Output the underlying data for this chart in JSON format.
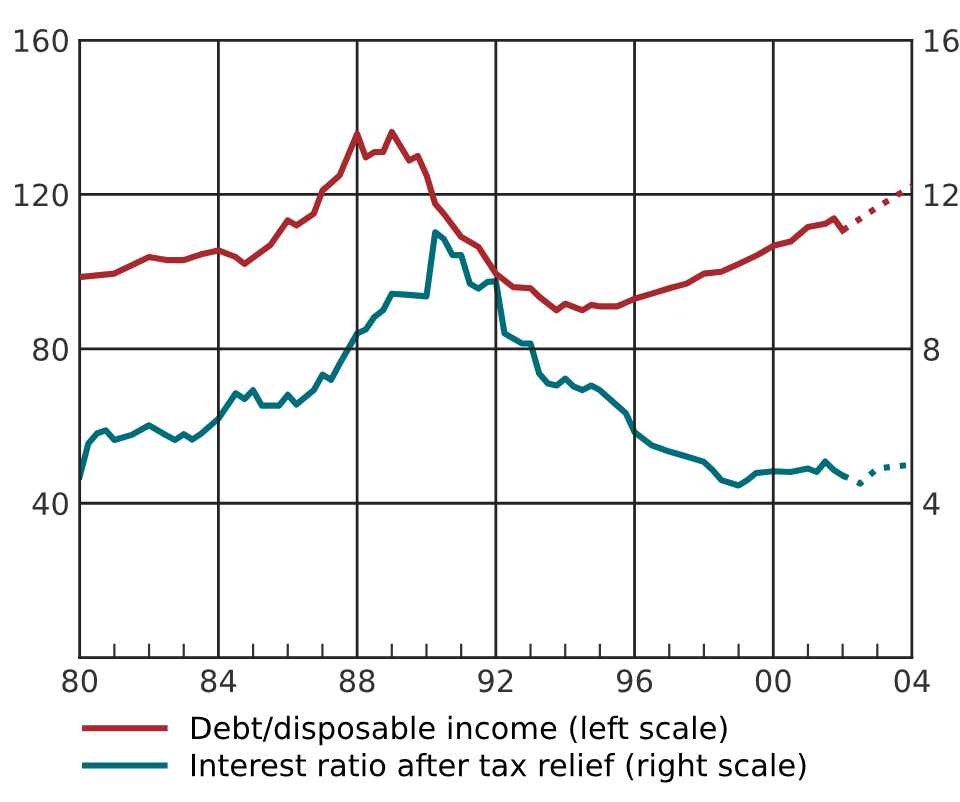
{
  "chart_data": {
    "type": "line",
    "xlim": [
      1980,
      2004
    ],
    "ylim": [
      0,
      160
    ],
    "y2lim": [
      0,
      16
    ],
    "xticks": [
      {
        "value": 1980,
        "label": "80"
      },
      {
        "value": 1981,
        "label": null
      },
      {
        "value": 1982,
        "label": null
      },
      {
        "value": 1983,
        "label": null
      },
      {
        "value": 1984,
        "label": "84"
      },
      {
        "value": 1985,
        "label": null
      },
      {
        "value": 1986,
        "label": null
      },
      {
        "value": 1987,
        "label": null
      },
      {
        "value": 1988,
        "label": "88"
      },
      {
        "value": 1989,
        "label": null
      },
      {
        "value": 1990,
        "label": null
      },
      {
        "value": 1991,
        "label": null
      },
      {
        "value": 1992,
        "label": "92"
      },
      {
        "value": 1993,
        "label": null
      },
      {
        "value": 1994,
        "label": null
      },
      {
        "value": 1995,
        "label": null
      },
      {
        "value": 1996,
        "label": "96"
      },
      {
        "value": 1997,
        "label": null
      },
      {
        "value": 1998,
        "label": null
      },
      {
        "value": 1999,
        "label": null
      },
      {
        "value": 2000,
        "label": "00"
      },
      {
        "value": 2001,
        "label": null
      },
      {
        "value": 2002,
        "label": null
      },
      {
        "value": 2003,
        "label": null
      },
      {
        "value": 2004,
        "label": "04"
      }
    ],
    "yticks": [
      40,
      80,
      120,
      160
    ],
    "y2ticks": [
      4,
      8,
      12,
      16
    ],
    "grid": true,
    "legend": "bottom",
    "marker": "none",
    "series": [
      {
        "name": "Debt/disposable income (left scale)",
        "color": "#a8282e",
        "line_style": "solid",
        "x": [
          1980,
          1981,
          1982,
          1982.5,
          1983,
          1983.5,
          1984,
          1984.5,
          1984.75,
          1985.5,
          1986,
          1986.25,
          1986.75,
          1987,
          1987.5,
          1988,
          1988.25,
          1988.5,
          1988.75,
          1989,
          1989.5,
          1989.75,
          1990,
          1990.25,
          1990.5,
          1991,
          1991.5,
          1992,
          1992.5,
          1993,
          1993.25,
          1993.75,
          1994,
          1994.5,
          1994.75,
          1995,
          1995.5,
          1996,
          1996.5,
          1997,
          1997.5,
          1998,
          1998.5,
          1999,
          1999.5,
          2000,
          2000.5,
          2001,
          2001.5,
          2001.75,
          2002
        ],
        "values": [
          98.6,
          99.5,
          103.8,
          103,
          103,
          104.5,
          105.5,
          103.8,
          102,
          106.9,
          113.3,
          112,
          115,
          121,
          125,
          135.7,
          129.6,
          131,
          131,
          136.2,
          128.8,
          130,
          125,
          117.6,
          115,
          109,
          106.4,
          99.5,
          96,
          95.7,
          93.5,
          90,
          91.7,
          90,
          91.4,
          91,
          91,
          93,
          94.3,
          95.7,
          96.9,
          99.5,
          100,
          102,
          104.1,
          106.7,
          107.8,
          111.6,
          112.4,
          113.8,
          110.7
        ]
      },
      {
        "color": "#a8282e",
        "line_style": "dotted",
        "x": [
          2002,
          2003,
          2004
        ],
        "values": [
          110.7,
          116.7,
          122.2
        ]
      },
      {
        "name": "Interest ratio after tax relief (right scale)",
        "color": "#006d7a",
        "line_style": "solid",
        "axis": "y2",
        "x": [
          1980,
          1980.25,
          1980.5,
          1980.75,
          1981,
          1981.5,
          1982,
          1982.5,
          1982.75,
          1983,
          1983.25,
          1983.5,
          1984,
          1984.5,
          1984.75,
          1985,
          1985.25,
          1985.75,
          1986,
          1986.25,
          1986.75,
          1987,
          1987.25,
          1987.5,
          1988,
          1988.25,
          1988.5,
          1988.75,
          1989,
          1989.5,
          1990,
          1990.25,
          1990.5,
          1990.75,
          1991,
          1991.25,
          1991.5,
          1991.75,
          1992,
          1992.25,
          1992.75,
          1993,
          1993.25,
          1993.5,
          1993.75,
          1994,
          1994.25,
          1994.5,
          1994.75,
          1995,
          1995.5,
          1995.75,
          1996,
          1996.5,
          1997,
          1997.5,
          1998,
          1998.25,
          1998.5,
          1999,
          1999.25,
          1999.5,
          2000,
          2000.5,
          2001,
          2001.25,
          2001.5,
          2001.75,
          2002
        ],
        "values": [
          4.69,
          5.55,
          5.81,
          5.89,
          5.64,
          5.77,
          6.02,
          5.76,
          5.64,
          5.79,
          5.65,
          5.8,
          6.19,
          6.85,
          6.7,
          6.93,
          6.53,
          6.53,
          6.81,
          6.56,
          6.93,
          7.33,
          7.2,
          7.62,
          8.4,
          8.5,
          8.83,
          9.0,
          9.43,
          9.4,
          9.36,
          11.02,
          10.85,
          10.43,
          10.43,
          9.69,
          9.56,
          9.73,
          9.76,
          8.4,
          8.14,
          8.14,
          7.36,
          7.1,
          7.05,
          7.23,
          7.02,
          6.93,
          7.05,
          6.93,
          6.53,
          6.33,
          5.84,
          5.5,
          5.34,
          5.21,
          5.07,
          4.86,
          4.6,
          4.46,
          4.6,
          4.78,
          4.83,
          4.81,
          4.9,
          4.81,
          5.08,
          4.86,
          4.72
        ]
      },
      {
        "color": "#006d7a",
        "line_style": "dotted",
        "axis": "y2",
        "x": [
          2002,
          2002.5,
          2003,
          2004
        ],
        "values": [
          4.72,
          4.51,
          4.9,
          5.0
        ]
      }
    ]
  }
}
